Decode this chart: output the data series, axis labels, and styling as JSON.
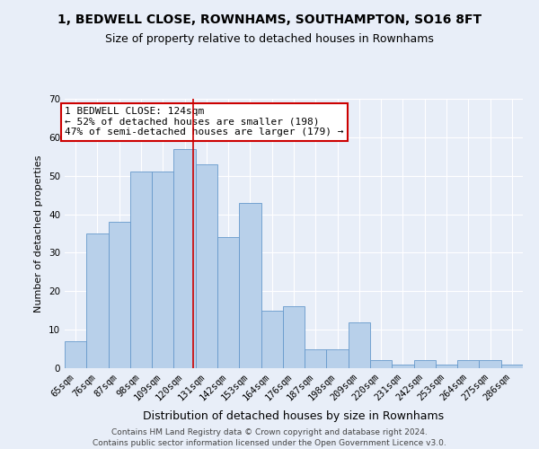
{
  "title": "1, BEDWELL CLOSE, ROWNHAMS, SOUTHAMPTON, SO16 8FT",
  "subtitle": "Size of property relative to detached houses in Rownhams",
  "xlabel": "Distribution of detached houses by size in Rownhams",
  "ylabel": "Number of detached properties",
  "categories": [
    "65sqm",
    "76sqm",
    "87sqm",
    "98sqm",
    "109sqm",
    "120sqm",
    "131sqm",
    "142sqm",
    "153sqm",
    "164sqm",
    "176sqm",
    "187sqm",
    "198sqm",
    "209sqm",
    "220sqm",
    "231sqm",
    "242sqm",
    "253sqm",
    "264sqm",
    "275sqm",
    "286sqm"
  ],
  "values": [
    7,
    35,
    38,
    51,
    51,
    57,
    53,
    34,
    43,
    15,
    16,
    5,
    5,
    12,
    2,
    1,
    2,
    1,
    2,
    2,
    1
  ],
  "bar_color": "#b8d0ea",
  "bar_edge_color": "#6699cc",
  "bg_color": "#e8eef8",
  "grid_color": "#ffffff",
  "property_line_color": "#cc0000",
  "annotation_text": "1 BEDWELL CLOSE: 124sqm\n← 52% of detached houses are smaller (198)\n47% of semi-detached houses are larger (179) →",
  "annotation_box_color": "#ffffff",
  "annotation_box_edge": "#cc0000",
  "footer_text": "Contains HM Land Registry data © Crown copyright and database right 2024.\nContains public sector information licensed under the Open Government Licence v3.0.",
  "ylim": [
    0,
    70
  ],
  "yticks": [
    0,
    10,
    20,
    30,
    40,
    50,
    60,
    70
  ],
  "bar_width": 1.0,
  "title_fontsize": 10,
  "subtitle_fontsize": 9,
  "xlabel_fontsize": 9,
  "ylabel_fontsize": 8,
  "tick_fontsize": 7.5,
  "annotation_fontsize": 8,
  "footer_fontsize": 6.5
}
